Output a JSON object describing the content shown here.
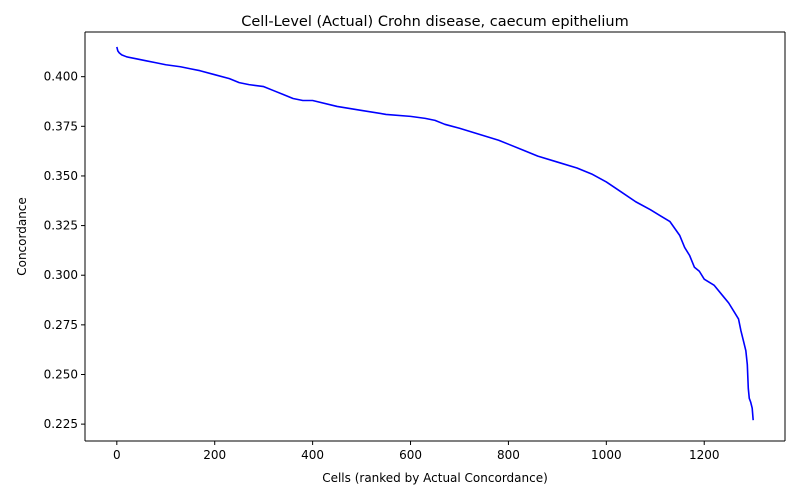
{
  "chart_data": {
    "type": "line",
    "title": "Cell-Level (Actual) Crohn disease, caecum epithelium",
    "xlabel": "Cells (ranked by Actual Concordance)",
    "ylabel": "Concordance",
    "xlim": [
      -65,
      1365
    ],
    "ylim": [
      0.2165,
      0.4225
    ],
    "xticks": [
      0,
      200,
      400,
      600,
      800,
      1000,
      1200
    ],
    "xtick_labels": [
      "0",
      "200",
      "400",
      "600",
      "800",
      "1000",
      "1200"
    ],
    "yticks": [
      0.225,
      0.25,
      0.275,
      0.3,
      0.325,
      0.35,
      0.375,
      0.4
    ],
    "ytick_labels": [
      "0.225",
      "0.250",
      "0.275",
      "0.300",
      "0.325",
      "0.350",
      "0.375",
      "0.400"
    ],
    "grid": false,
    "series": [
      {
        "color": "#0000ff",
        "x": [
          0,
          2,
          5,
          10,
          20,
          40,
          60,
          80,
          100,
          130,
          150,
          170,
          200,
          230,
          250,
          270,
          300,
          320,
          340,
          360,
          380,
          400,
          450,
          500,
          550,
          600,
          630,
          650,
          670,
          700,
          740,
          780,
          800,
          830,
          860,
          900,
          940,
          970,
          1000,
          1030,
          1060,
          1090,
          1110,
          1130,
          1150,
          1160,
          1170,
          1180,
          1190,
          1200,
          1220,
          1240,
          1250,
          1260,
          1270,
          1275,
          1280,
          1285,
          1288,
          1290,
          1292,
          1295,
          1298,
          1300
        ],
        "y": [
          0.415,
          0.413,
          0.412,
          0.411,
          0.41,
          0.409,
          0.408,
          0.407,
          0.406,
          0.405,
          0.404,
          0.403,
          0.401,
          0.399,
          0.397,
          0.396,
          0.395,
          0.393,
          0.391,
          0.389,
          0.388,
          0.388,
          0.385,
          0.383,
          0.381,
          0.38,
          0.379,
          0.378,
          0.376,
          0.374,
          0.371,
          0.368,
          0.366,
          0.363,
          0.36,
          0.357,
          0.354,
          0.351,
          0.347,
          0.342,
          0.337,
          0.333,
          0.33,
          0.327,
          0.32,
          0.314,
          0.31,
          0.304,
          0.302,
          0.298,
          0.295,
          0.289,
          0.286,
          0.282,
          0.278,
          0.272,
          0.267,
          0.262,
          0.255,
          0.243,
          0.238,
          0.236,
          0.233,
          0.227
        ]
      }
    ]
  }
}
